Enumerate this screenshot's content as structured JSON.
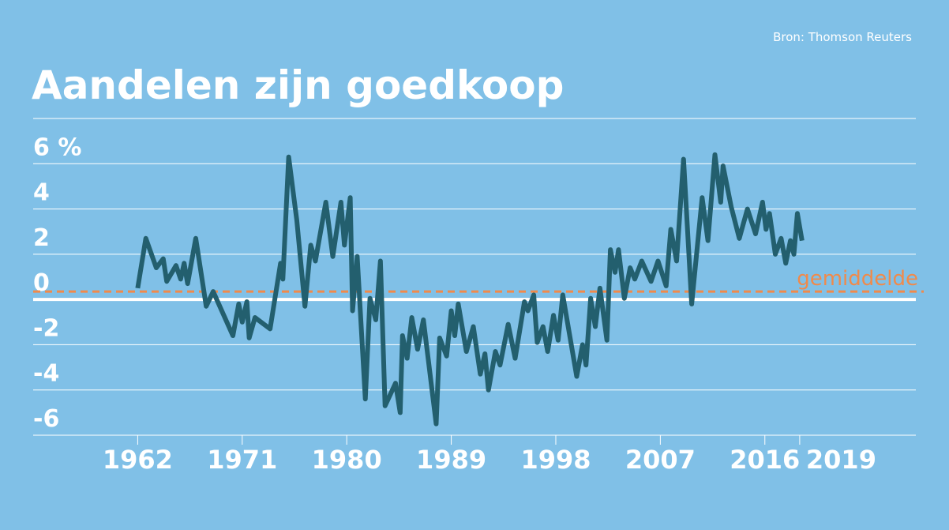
{
  "chart_data": {
    "type": "line",
    "title": "Aandelen zijn goedkoop",
    "source": "Bron: Thomson Reuters",
    "x": [
      1962.0,
      1962.7,
      1963.6,
      1964.2,
      1964.5,
      1965.3,
      1965.7,
      1966.0,
      1966.3,
      1967.0,
      1967.9,
      1968.5,
      1970.2,
      1970.7,
      1971.0,
      1971.4,
      1971.6,
      1972.1,
      1973.4,
      1974.3,
      1974.5,
      1975.0,
      1975.7,
      1976.4,
      1976.9,
      1977.3,
      1978.2,
      1978.8,
      1979.5,
      1979.8,
      1980.3,
      1980.5,
      1980.9,
      1981.6,
      1982.0,
      1982.5,
      1982.9,
      1983.3,
      1984.2,
      1984.6,
      1984.8,
      1985.2,
      1985.6,
      1986.1,
      1986.6,
      1987.7,
      1988.0,
      1988.6,
      1989.0,
      1989.3,
      1989.6,
      1990.3,
      1990.9,
      1991.5,
      1991.9,
      1992.2,
      1992.8,
      1993.2,
      1993.9,
      1994.5,
      1995.3,
      1995.6,
      1996.1,
      1996.4,
      1996.9,
      1997.3,
      1997.8,
      1998.2,
      1998.6,
      1999.8,
      2000.3,
      2000.6,
      2001.0,
      2001.4,
      2001.8,
      2002.4,
      2002.7,
      2003.1,
      2003.4,
      2003.9,
      2004.4,
      2004.8,
      2005.4,
      2006.2,
      2006.8,
      2007.5,
      2007.9,
      2008.4,
      2009.0,
      2009.7,
      2010.6,
      2011.1,
      2011.7,
      2012.2,
      2012.4,
      2013.1,
      2013.8,
      2014.5,
      2015.2,
      2015.8,
      2016.1,
      2016.4,
      2016.9,
      2017.4,
      2017.8,
      2018.2,
      2018.5,
      2018.8,
      2019.2
    ],
    "series": [
      {
        "name": "Aandelen",
        "color": "#235f6e",
        "values": [
          0.5,
          2.7,
          1.4,
          1.8,
          0.8,
          1.5,
          0.9,
          1.6,
          0.7,
          2.7,
          -0.3,
          0.35,
          -1.6,
          -0.2,
          -1.0,
          -0.1,
          -1.7,
          -0.8,
          -1.3,
          1.6,
          0.9,
          6.3,
          3.5,
          -0.3,
          2.4,
          1.7,
          4.3,
          1.9,
          4.3,
          2.4,
          4.5,
          -0.5,
          1.9,
          -4.4,
          0.05,
          -0.9,
          1.7,
          -4.7,
          -3.7,
          -5.0,
          -1.6,
          -2.6,
          -0.8,
          -2.2,
          -0.9,
          -5.5,
          -1.7,
          -2.5,
          -0.5,
          -1.6,
          -0.2,
          -2.3,
          -1.2,
          -3.3,
          -2.4,
          -4.0,
          -2.3,
          -2.9,
          -1.1,
          -2.6,
          -0.1,
          -0.5,
          0.2,
          -1.9,
          -1.2,
          -2.3,
          -0.7,
          -1.8,
          0.2,
          -3.4,
          -2.0,
          -2.9,
          0.05,
          -1.2,
          0.5,
          -1.8,
          2.2,
          1.2,
          2.2,
          0.05,
          1.4,
          0.9,
          1.7,
          0.8,
          1.7,
          0.6,
          3.1,
          1.7,
          6.2,
          -0.2,
          4.5,
          2.6,
          6.4,
          4.3,
          5.9,
          4.1,
          2.7,
          4.0,
          2.9,
          4.3,
          3.1,
          3.8,
          2.0,
          2.7,
          1.6,
          2.6,
          2.0,
          3.8,
          2.6
        ]
      }
    ],
    "mean": 0.35,
    "mean_label": "gemiddelde",
    "mean_color": "#f08a4b",
    "xlim": [
      1953,
      2029
    ],
    "xticks": [
      1962,
      1971,
      1980,
      1989,
      1998,
      2007,
      2016,
      2019
    ],
    "ylim": [
      -6,
      8
    ],
    "yticks": [
      -6,
      -4,
      -2,
      0,
      2,
      4,
      {
        "value": 6,
        "label": "6 %"
      }
    ],
    "grid": true
  }
}
